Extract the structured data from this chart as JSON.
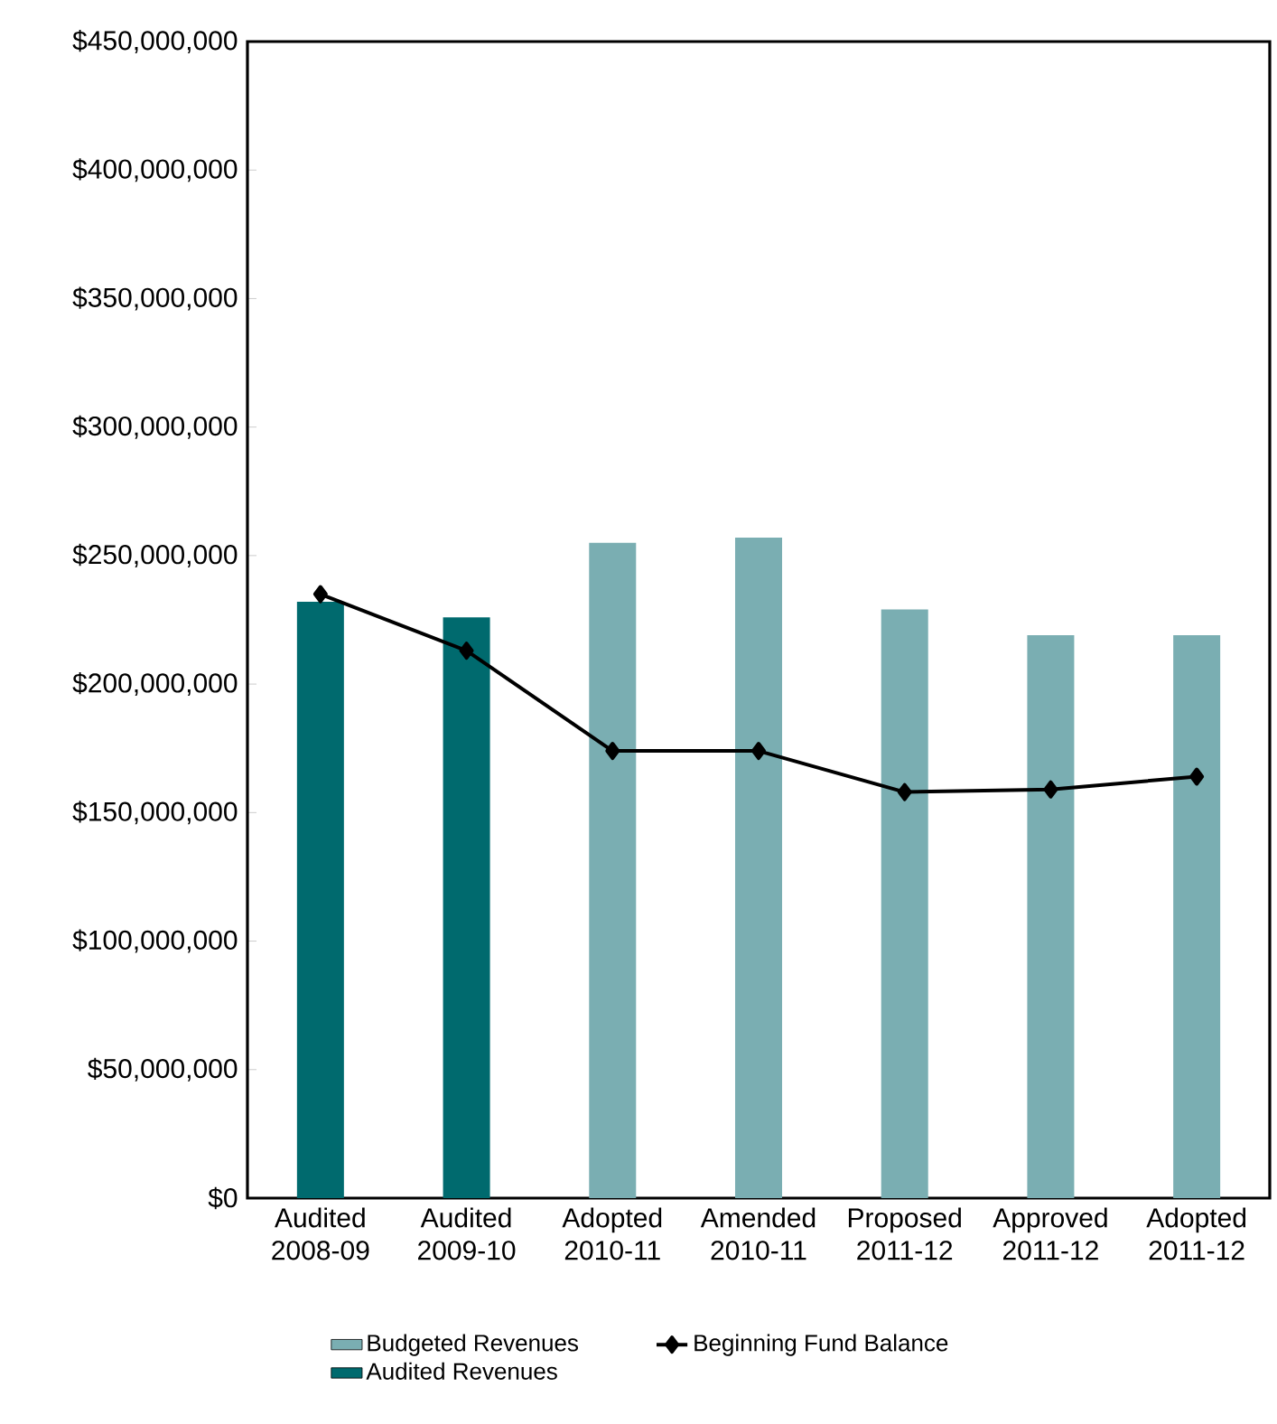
{
  "chart_data": {
    "type": "bar",
    "categories": [
      "Audited 2008-09",
      "Audited 2009-10",
      "Adopted 2010-11",
      "Amended 2010-11",
      "Proposed 2011-12",
      "Approved 2011-12",
      "Adopted 2011-12"
    ],
    "series": [
      {
        "name": "Budgeted Revenues",
        "type": "bar",
        "color": "#7aaeb2",
        "values": [
          null,
          null,
          255000000,
          257000000,
          229000000,
          219000000,
          219000000
        ]
      },
      {
        "name": "Beginning  Fund Balance",
        "type": "line",
        "color": "#000000",
        "marker": "diamond",
        "values": [
          235000000,
          213000000,
          174000000,
          174000000,
          158000000,
          159000000,
          164000000
        ]
      },
      {
        "name": "Audited Revenues",
        "type": "bar",
        "color": "#006a6e",
        "values": [
          232000000,
          226000000,
          null,
          null,
          null,
          null,
          null
        ]
      }
    ],
    "ylim": [
      0,
      450000000
    ],
    "yticks": [
      {
        "value": 0,
        "label": "$0"
      },
      {
        "value": 50000000,
        "label": "$50,000,000"
      },
      {
        "value": 100000000,
        "label": "$100,000,000"
      },
      {
        "value": 150000000,
        "label": "$150,000,000"
      },
      {
        "value": 200000000,
        "label": "$200,000,000"
      },
      {
        "value": 250000000,
        "label": "$250,000,000"
      },
      {
        "value": 300000000,
        "label": "$300,000,000"
      },
      {
        "value": 350000000,
        "label": "$350,000,000"
      },
      {
        "value": 400000000,
        "label": "$400,000,000"
      },
      {
        "value": 450000000,
        "label": "$450,000,000"
      }
    ],
    "grid": false,
    "legend": "bottom"
  }
}
